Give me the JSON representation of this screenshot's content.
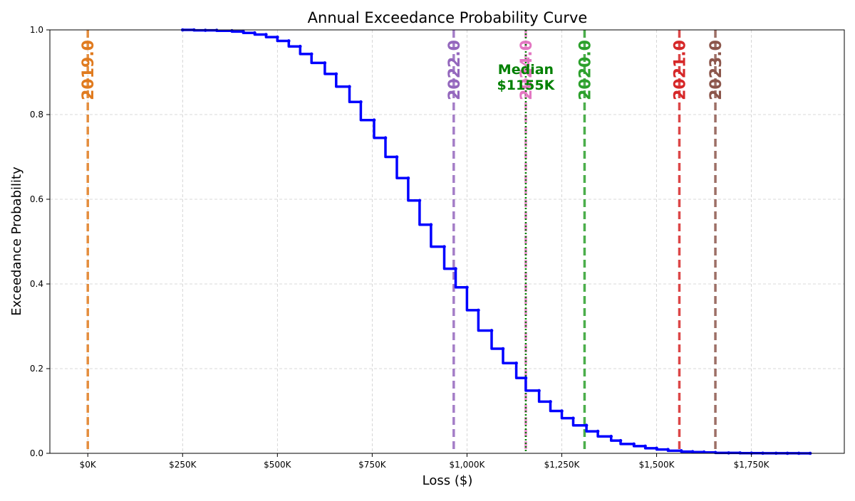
{
  "chart_data": {
    "type": "line",
    "title": "Annual Exceedance Probability Curve",
    "xlabel": "Loss ($)",
    "ylabel": "Exceedance Probability",
    "xlim": [
      -200,
      3990
    ],
    "ylim": [
      0,
      1
    ],
    "grid": true,
    "x_ticks": [
      {
        "value": 0,
        "label": "$0K"
      },
      {
        "value": 500,
        "label": "$250K"
      },
      {
        "value": 1000,
        "label": "$500K"
      },
      {
        "value": 1500,
        "label": "$750K"
      },
      {
        "value": 2000,
        "label": "$1,000K"
      },
      {
        "value": 2500,
        "label": "$1,250K"
      },
      {
        "value": 3000,
        "label": "$1,500K"
      },
      {
        "value": 3500,
        "label": "$1,750K"
      }
    ],
    "y_ticks": [
      {
        "value": 0,
        "label": "0.0"
      },
      {
        "value": 0.2,
        "label": "0.2"
      },
      {
        "value": 0.4,
        "label": "0.4"
      },
      {
        "value": 0.6,
        "label": "0.6"
      },
      {
        "value": 0.8,
        "label": "0.8"
      },
      {
        "value": 1,
        "label": "1.0"
      }
    ],
    "series": [
      {
        "color": "#0000ff",
        "step": true,
        "x": [
          500,
          560,
          620,
          680,
          760,
          820,
          880,
          940,
          1000,
          1060,
          1120,
          1180,
          1250,
          1310,
          1380,
          1440,
          1510,
          1570,
          1630,
          1690,
          1750,
          1810,
          1880,
          1940,
          2000,
          2060,
          2130,
          2190,
          2260,
          2310,
          2380,
          2440,
          2500,
          2560,
          2630,
          2690,
          2760,
          2810,
          2880,
          2940,
          3000,
          3060,
          3130,
          3190,
          3250,
          3310,
          3380,
          3440,
          3500,
          3560,
          3630,
          3690,
          3750,
          3810
        ],
        "y": [
          1.0,
          1.0,
          0.999,
          0.999,
          0.998,
          0.996,
          0.993,
          0.989,
          0.983,
          0.974,
          0.961,
          0.943,
          0.922,
          0.896,
          0.866,
          0.83,
          0.787,
          0.745,
          0.7,
          0.65,
          0.597,
          0.54,
          0.488,
          0.436,
          0.392,
          0.338,
          0.29,
          0.247,
          0.213,
          0.178,
          0.148,
          0.122,
          0.1,
          0.083,
          0.066,
          0.052,
          0.04,
          0.03,
          0.022,
          0.017,
          0.012,
          0.009,
          0.006,
          0.004,
          0.003,
          0.002,
          0.001,
          0.001,
          0.0005,
          0.0003,
          0.0002,
          0.0001,
          0.0001,
          0.0
        ]
      }
    ],
    "vlines": [
      {
        "x": 0,
        "label": "2019.0",
        "color": "#e07b1f",
        "style": "dashed"
      },
      {
        "x": 1930,
        "label": "2022.0",
        "color": "#9467bd",
        "style": "dashed"
      },
      {
        "x": 2310,
        "label": "2024.0",
        "color": "#e377c2",
        "style": "dashed"
      },
      {
        "x": 2620,
        "label": "2020.0",
        "color": "#2ca02c",
        "style": "dashed"
      },
      {
        "x": 3120,
        "label": "2021.0",
        "color": "#d62728",
        "style": "dashed"
      },
      {
        "x": 3310,
        "label": "2023.0",
        "color": "#8c564b",
        "style": "dashed"
      }
    ],
    "median": {
      "x": 2310,
      "label_line1": "Median",
      "label_line2": "$1155K",
      "color": "#008000",
      "style": "dotted"
    }
  }
}
